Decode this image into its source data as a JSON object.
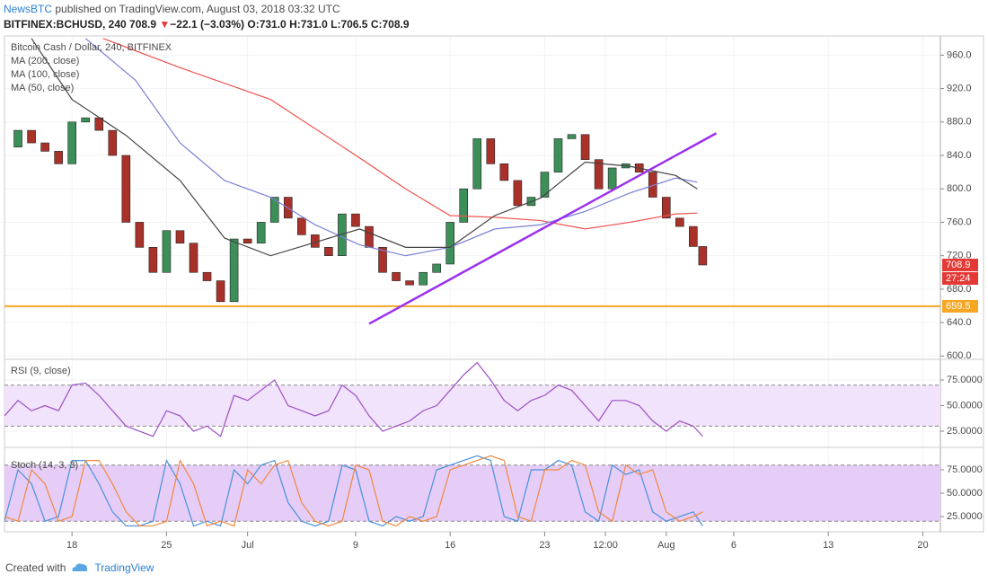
{
  "header": {
    "author": "NewsBTC",
    "published": "published on TradingView.com, August 03, 2018 03:32 UTC",
    "symbol": "BITFINEX:BCHUSD, 240",
    "last": "708.9",
    "arrow": "▼",
    "change": "−22.1 (−3.03%)",
    "ohlc": [
      "O:731.0",
      "H:731.0",
      "L:706.5",
      "C:708.9"
    ]
  },
  "footer": {
    "created": "Created with",
    "brand": "TradingView"
  },
  "chart_data": [
    {
      "type": "candlestick",
      "xlim": [
        13,
        82.3
      ],
      "ylim": [
        596,
        983
      ],
      "yticks": [
        {
          "value": 600,
          "label": "600.0"
        },
        {
          "value": 640,
          "label": "640.0"
        },
        {
          "value": 680,
          "label": "680.0"
        },
        {
          "value": 720,
          "label": "720.0"
        },
        {
          "value": 760,
          "label": "760.0"
        },
        {
          "value": 800,
          "label": "800.0"
        },
        {
          "value": 840,
          "label": "840.0"
        },
        {
          "value": 880,
          "label": "880.0"
        },
        {
          "value": 920,
          "label": "920.0"
        },
        {
          "value": 960,
          "label": "960.0"
        }
      ],
      "up_color": "#3d8f5a",
      "down_color": "#a8322a",
      "series": [
        {
          "name": "Bitcoin Cash / Dollar, 240, BITFINEX",
          "x": [
            13,
            14,
            15,
            16,
            17,
            18,
            19,
            20,
            21,
            22,
            23,
            24,
            25,
            26,
            27,
            28,
            29,
            30,
            31,
            32,
            33,
            34,
            35,
            36,
            37,
            38,
            39,
            40,
            41,
            42,
            43,
            44,
            45,
            46,
            47,
            48,
            49,
            50,
            51,
            52,
            53,
            54,
            55,
            56,
            57,
            58,
            59,
            60,
            61,
            62,
            63,
            64,
            64.7
          ],
          "values": [
            850,
            870,
            855,
            845,
            830,
            880,
            885,
            870,
            840,
            760,
            730,
            700,
            750,
            735,
            700,
            690,
            665,
            740,
            735,
            760,
            790,
            765,
            745,
            730,
            720,
            770,
            755,
            730,
            700,
            690,
            685,
            700,
            710,
            760,
            800,
            860,
            830,
            810,
            780,
            790,
            820,
            860,
            865,
            835,
            800,
            825,
            830,
            820,
            790,
            765,
            755,
            731,
            708.9
          ]
        },
        {
          "name": "MA (200, close)",
          "color": "#ef5350",
          "x": [
            20.3,
            26,
            32.7,
            39.3,
            42.7,
            46,
            49.3,
            52.7,
            56,
            59.3,
            62.7,
            64.3
          ],
          "values": [
            980,
            945,
            907,
            837,
            800,
            768,
            766,
            762,
            752,
            760,
            770,
            771
          ]
        },
        {
          "name": "MA (100, close)",
          "color": "#7b7fd6",
          "x": [
            19,
            22.7,
            26,
            29.3,
            32.7,
            36,
            39.3,
            42.7,
            46,
            49.3,
            52.7,
            56,
            59.3,
            62.7,
            64.3
          ],
          "values": [
            980,
            930,
            855,
            810,
            790,
            757,
            733,
            720,
            730,
            752,
            757,
            773,
            795,
            813,
            808
          ]
        },
        {
          "name": "MA (50, close)",
          "color": "#444444",
          "x": [
            15,
            18,
            22,
            26,
            29.3,
            32.7,
            36,
            39.3,
            42.7,
            46,
            49.3,
            52.7,
            56,
            59.3,
            62.7,
            64.3
          ],
          "values": [
            980,
            907,
            864,
            810,
            741,
            720,
            736,
            752,
            730,
            730,
            768,
            789,
            832,
            827,
            816,
            800
          ]
        }
      ],
      "hline": {
        "value": 659.5,
        "color": "#f5a623"
      },
      "trendline": {
        "x": [
          40,
          65.7
        ],
        "y": [
          638.5,
          866.5
        ],
        "color": "#9b2ff0"
      },
      "last_price": 708.9,
      "countdown": "27:24",
      "last_color": "#e53935"
    },
    {
      "type": "line",
      "title": "RSI (9, close)",
      "xlim": [
        13,
        82.3
      ],
      "ylim": [
        14.5,
        95.2
      ],
      "yticks": [
        {
          "value": 25,
          "label": "25.0000"
        },
        {
          "value": 50,
          "label": "50.0000"
        },
        {
          "value": 75,
          "label": "75.0000"
        }
      ],
      "band": [
        30,
        70
      ],
      "band_color": "#f1e3fb",
      "series": [
        {
          "color": "#9c4fc4",
          "x": [
            13,
            14,
            15,
            16,
            17,
            18,
            19,
            20,
            21,
            22,
            23,
            24,
            25,
            26,
            27,
            28,
            29,
            30,
            31,
            32,
            33,
            34,
            35,
            36,
            37,
            38,
            39,
            40,
            41,
            42,
            43,
            44,
            45,
            46,
            47,
            48,
            49,
            50,
            51,
            52,
            53,
            54,
            55,
            56,
            57,
            58,
            59,
            60,
            61,
            62,
            63,
            64,
            64.7
          ],
          "values": [
            40,
            55,
            45,
            50,
            45,
            70,
            72,
            60,
            45,
            30,
            25,
            20,
            45,
            40,
            25,
            30,
            20,
            60,
            55,
            65,
            75,
            50,
            45,
            40,
            45,
            70,
            60,
            40,
            25,
            30,
            35,
            45,
            50,
            65,
            80,
            92,
            75,
            55,
            45,
            55,
            60,
            70,
            65,
            50,
            35,
            55,
            55,
            50,
            35,
            25,
            35,
            30,
            20
          ]
        }
      ]
    },
    {
      "type": "line",
      "title": "Stoch (14, 3, 3)",
      "xlim": [
        13,
        82.3
      ],
      "ylim": [
        8.7,
        92.3
      ],
      "yticks": [
        {
          "value": 25,
          "label": "25.0000"
        },
        {
          "value": 50,
          "label": "50.0000"
        },
        {
          "value": 75,
          "label": "75.0000"
        }
      ],
      "band": [
        20,
        80
      ],
      "band_color": "#e6cdf7",
      "xticks": [
        {
          "value": 18,
          "label": "18"
        },
        {
          "value": 25,
          "label": "25"
        },
        {
          "value": 31,
          "label": "Jul"
        },
        {
          "value": 39,
          "label": "9"
        },
        {
          "value": 46,
          "label": "16"
        },
        {
          "value": 53,
          "label": "23"
        },
        {
          "value": 57.5,
          "label": "12:00"
        },
        {
          "value": 62,
          "label": "Aug"
        },
        {
          "value": 67,
          "label": "6"
        },
        {
          "value": 74,
          "label": "13"
        },
        {
          "value": 81,
          "label": "20"
        }
      ],
      "series": [
        {
          "color": "#4a90d9",
          "x": [
            13,
            14,
            15,
            16,
            17,
            18,
            19,
            20,
            21,
            22,
            23,
            24,
            25,
            26,
            27,
            28,
            29,
            30,
            31,
            32,
            33,
            34,
            35,
            36,
            37,
            38,
            39,
            40,
            41,
            42,
            43,
            44,
            45,
            46,
            47,
            48,
            49,
            50,
            51,
            52,
            53,
            54,
            55,
            56,
            57,
            58,
            59,
            60,
            61,
            62,
            63,
            64,
            64.7
          ],
          "values": [
            20,
            75,
            60,
            20,
            25,
            85,
            85,
            60,
            30,
            15,
            15,
            20,
            85,
            60,
            15,
            20,
            15,
            75,
            60,
            80,
            85,
            40,
            20,
            15,
            20,
            80,
            75,
            20,
            15,
            25,
            20,
            25,
            75,
            80,
            85,
            90,
            85,
            25,
            20,
            75,
            75,
            85,
            80,
            30,
            20,
            80,
            70,
            75,
            30,
            20,
            25,
            30,
            15
          ]
        },
        {
          "color": "#f0883e",
          "x": [
            13,
            14,
            15,
            16,
            17,
            18,
            19,
            20,
            21,
            22,
            23,
            24,
            25,
            26,
            27,
            28,
            29,
            30,
            31,
            32,
            33,
            34,
            35,
            36,
            37,
            38,
            39,
            40,
            41,
            42,
            43,
            44,
            45,
            46,
            47,
            48,
            49,
            50,
            51,
            52,
            53,
            54,
            55,
            56,
            57,
            58,
            59,
            60,
            61,
            62,
            63,
            64,
            64.7
          ],
          "values": [
            25,
            20,
            75,
            60,
            20,
            25,
            85,
            85,
            60,
            30,
            15,
            15,
            20,
            85,
            60,
            15,
            20,
            15,
            75,
            60,
            80,
            85,
            40,
            20,
            15,
            20,
            80,
            75,
            20,
            15,
            25,
            20,
            25,
            75,
            80,
            85,
            90,
            85,
            25,
            20,
            75,
            75,
            85,
            80,
            30,
            20,
            80,
            70,
            75,
            30,
            20,
            25,
            30
          ]
        }
      ]
    }
  ]
}
